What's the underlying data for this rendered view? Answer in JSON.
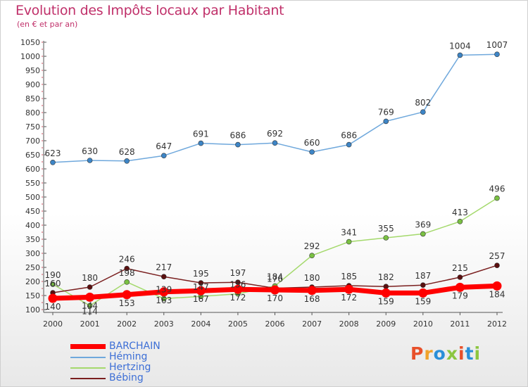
{
  "title": "Evolution des Impôts locaux par Habitant",
  "subtitle": "(en € et par an)",
  "logo": {
    "text": "Proxiti",
    "colors": [
      "#e8502a",
      "#f0a22a",
      "#2a8fd8",
      "#8cc63f",
      "#e8502a",
      "#2a8fd8",
      "#8cc63f"
    ]
  },
  "chart_data": {
    "type": "line",
    "x": [
      "2000",
      "2001",
      "2002",
      "2003",
      "2004",
      "2005",
      "2006",
      "2007",
      "2008",
      "2009",
      "2010",
      "2011",
      "2012"
    ],
    "ylim": [
      100,
      1050
    ],
    "yticks": [
      "100",
      "150",
      "200",
      "250",
      "300",
      "350",
      "400",
      "450",
      "500",
      "550",
      "600",
      "650",
      "700",
      "750",
      "800",
      "850",
      "900",
      "950",
      "1000",
      "1050"
    ],
    "grid": false,
    "legend_position": "bottom-left",
    "series": [
      {
        "name": "BARCHAIN",
        "color": "#ff0000",
        "marker": "#ff0000",
        "values": [
          140,
          144,
          153,
          163,
          167,
          172,
          170,
          168,
          172,
          159,
          159,
          179,
          184
        ]
      },
      {
        "name": "Héming",
        "color": "#6fa8dc",
        "marker": "#3d85c6",
        "values": [
          623,
          630,
          628,
          647,
          691,
          686,
          692,
          660,
          686,
          769,
          802,
          1004,
          1007
        ]
      },
      {
        "name": "Hertzing",
        "color": "#a4d96c",
        "marker": "#7ac143",
        "values": [
          190,
          114,
          198,
          139,
          147,
          156,
          184,
          292,
          341,
          355,
          369,
          413,
          496
        ]
      },
      {
        "name": "Bébing",
        "color": "#7a1f1f",
        "marker": "#5a0f0f",
        "values": [
          160,
          180,
          246,
          217,
          195,
          197,
          176,
          180,
          185,
          182,
          187,
          215,
          257
        ]
      }
    ]
  }
}
